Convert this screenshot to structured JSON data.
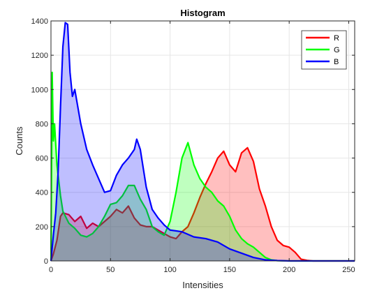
{
  "chart_data": {
    "type": "area",
    "title": "Histogram",
    "xlabel": "Intensities",
    "ylabel": "Counts",
    "xlim": [
      0,
      255
    ],
    "ylim": [
      0,
      1400
    ],
    "xticks": [
      "0",
      "50",
      "100",
      "150",
      "200",
      "250"
    ],
    "yticks": [
      "0",
      "200",
      "400",
      "600",
      "800",
      "1000",
      "1200",
      "1400"
    ],
    "grid": true,
    "legend_position": "top-right",
    "series": [
      {
        "name": "R",
        "color": "#ff0000",
        "x": [
          0,
          2,
          5,
          8,
          10,
          15,
          20,
          25,
          30,
          35,
          40,
          45,
          50,
          55,
          60,
          65,
          70,
          75,
          80,
          85,
          90,
          95,
          100,
          105,
          110,
          115,
          120,
          125,
          130,
          135,
          140,
          145,
          150,
          155,
          160,
          165,
          170,
          175,
          180,
          185,
          190,
          195,
          200,
          205,
          210,
          215,
          220,
          255
        ],
        "values": [
          0,
          40,
          120,
          260,
          280,
          270,
          230,
          260,
          190,
          220,
          200,
          230,
          260,
          300,
          280,
          320,
          250,
          210,
          200,
          200,
          180,
          160,
          140,
          130,
          170,
          200,
          280,
          370,
          450,
          520,
          600,
          640,
          560,
          520,
          630,
          660,
          580,
          420,
          320,
          200,
          120,
          90,
          80,
          50,
          10,
          3,
          0,
          0
        ]
      },
      {
        "name": "G",
        "color": "#00ff00",
        "x": [
          0,
          1,
          2,
          3,
          5,
          8,
          10,
          15,
          20,
          25,
          30,
          35,
          40,
          45,
          50,
          55,
          60,
          65,
          70,
          75,
          80,
          85,
          90,
          95,
          100,
          105,
          110,
          115,
          120,
          125,
          130,
          135,
          140,
          145,
          150,
          155,
          160,
          165,
          170,
          175,
          180,
          185,
          190,
          200,
          255
        ],
        "values": [
          0,
          1100,
          700,
          800,
          560,
          380,
          290,
          220,
          190,
          150,
          140,
          160,
          200,
          260,
          330,
          340,
          380,
          440,
          440,
          360,
          300,
          200,
          170,
          150,
          230,
          400,
          600,
          690,
          560,
          480,
          430,
          400,
          350,
          320,
          260,
          180,
          130,
          100,
          80,
          50,
          20,
          6,
          2,
          0,
          0
        ]
      },
      {
        "name": "B",
        "color": "#0000ff",
        "x": [
          0,
          2,
          4,
          6,
          8,
          10,
          12,
          14,
          16,
          18,
          20,
          25,
          30,
          35,
          40,
          45,
          50,
          55,
          60,
          65,
          70,
          72,
          75,
          80,
          85,
          90,
          95,
          100,
          110,
          120,
          130,
          140,
          150,
          160,
          170,
          180,
          190,
          200,
          255
        ],
        "values": [
          0,
          150,
          280,
          520,
          900,
          1250,
          1390,
          1380,
          1100,
          960,
          1000,
          800,
          650,
          560,
          480,
          400,
          410,
          500,
          560,
          600,
          650,
          710,
          650,
          430,
          300,
          250,
          210,
          180,
          170,
          140,
          130,
          110,
          70,
          45,
          20,
          6,
          2,
          0,
          0
        ]
      }
    ]
  }
}
